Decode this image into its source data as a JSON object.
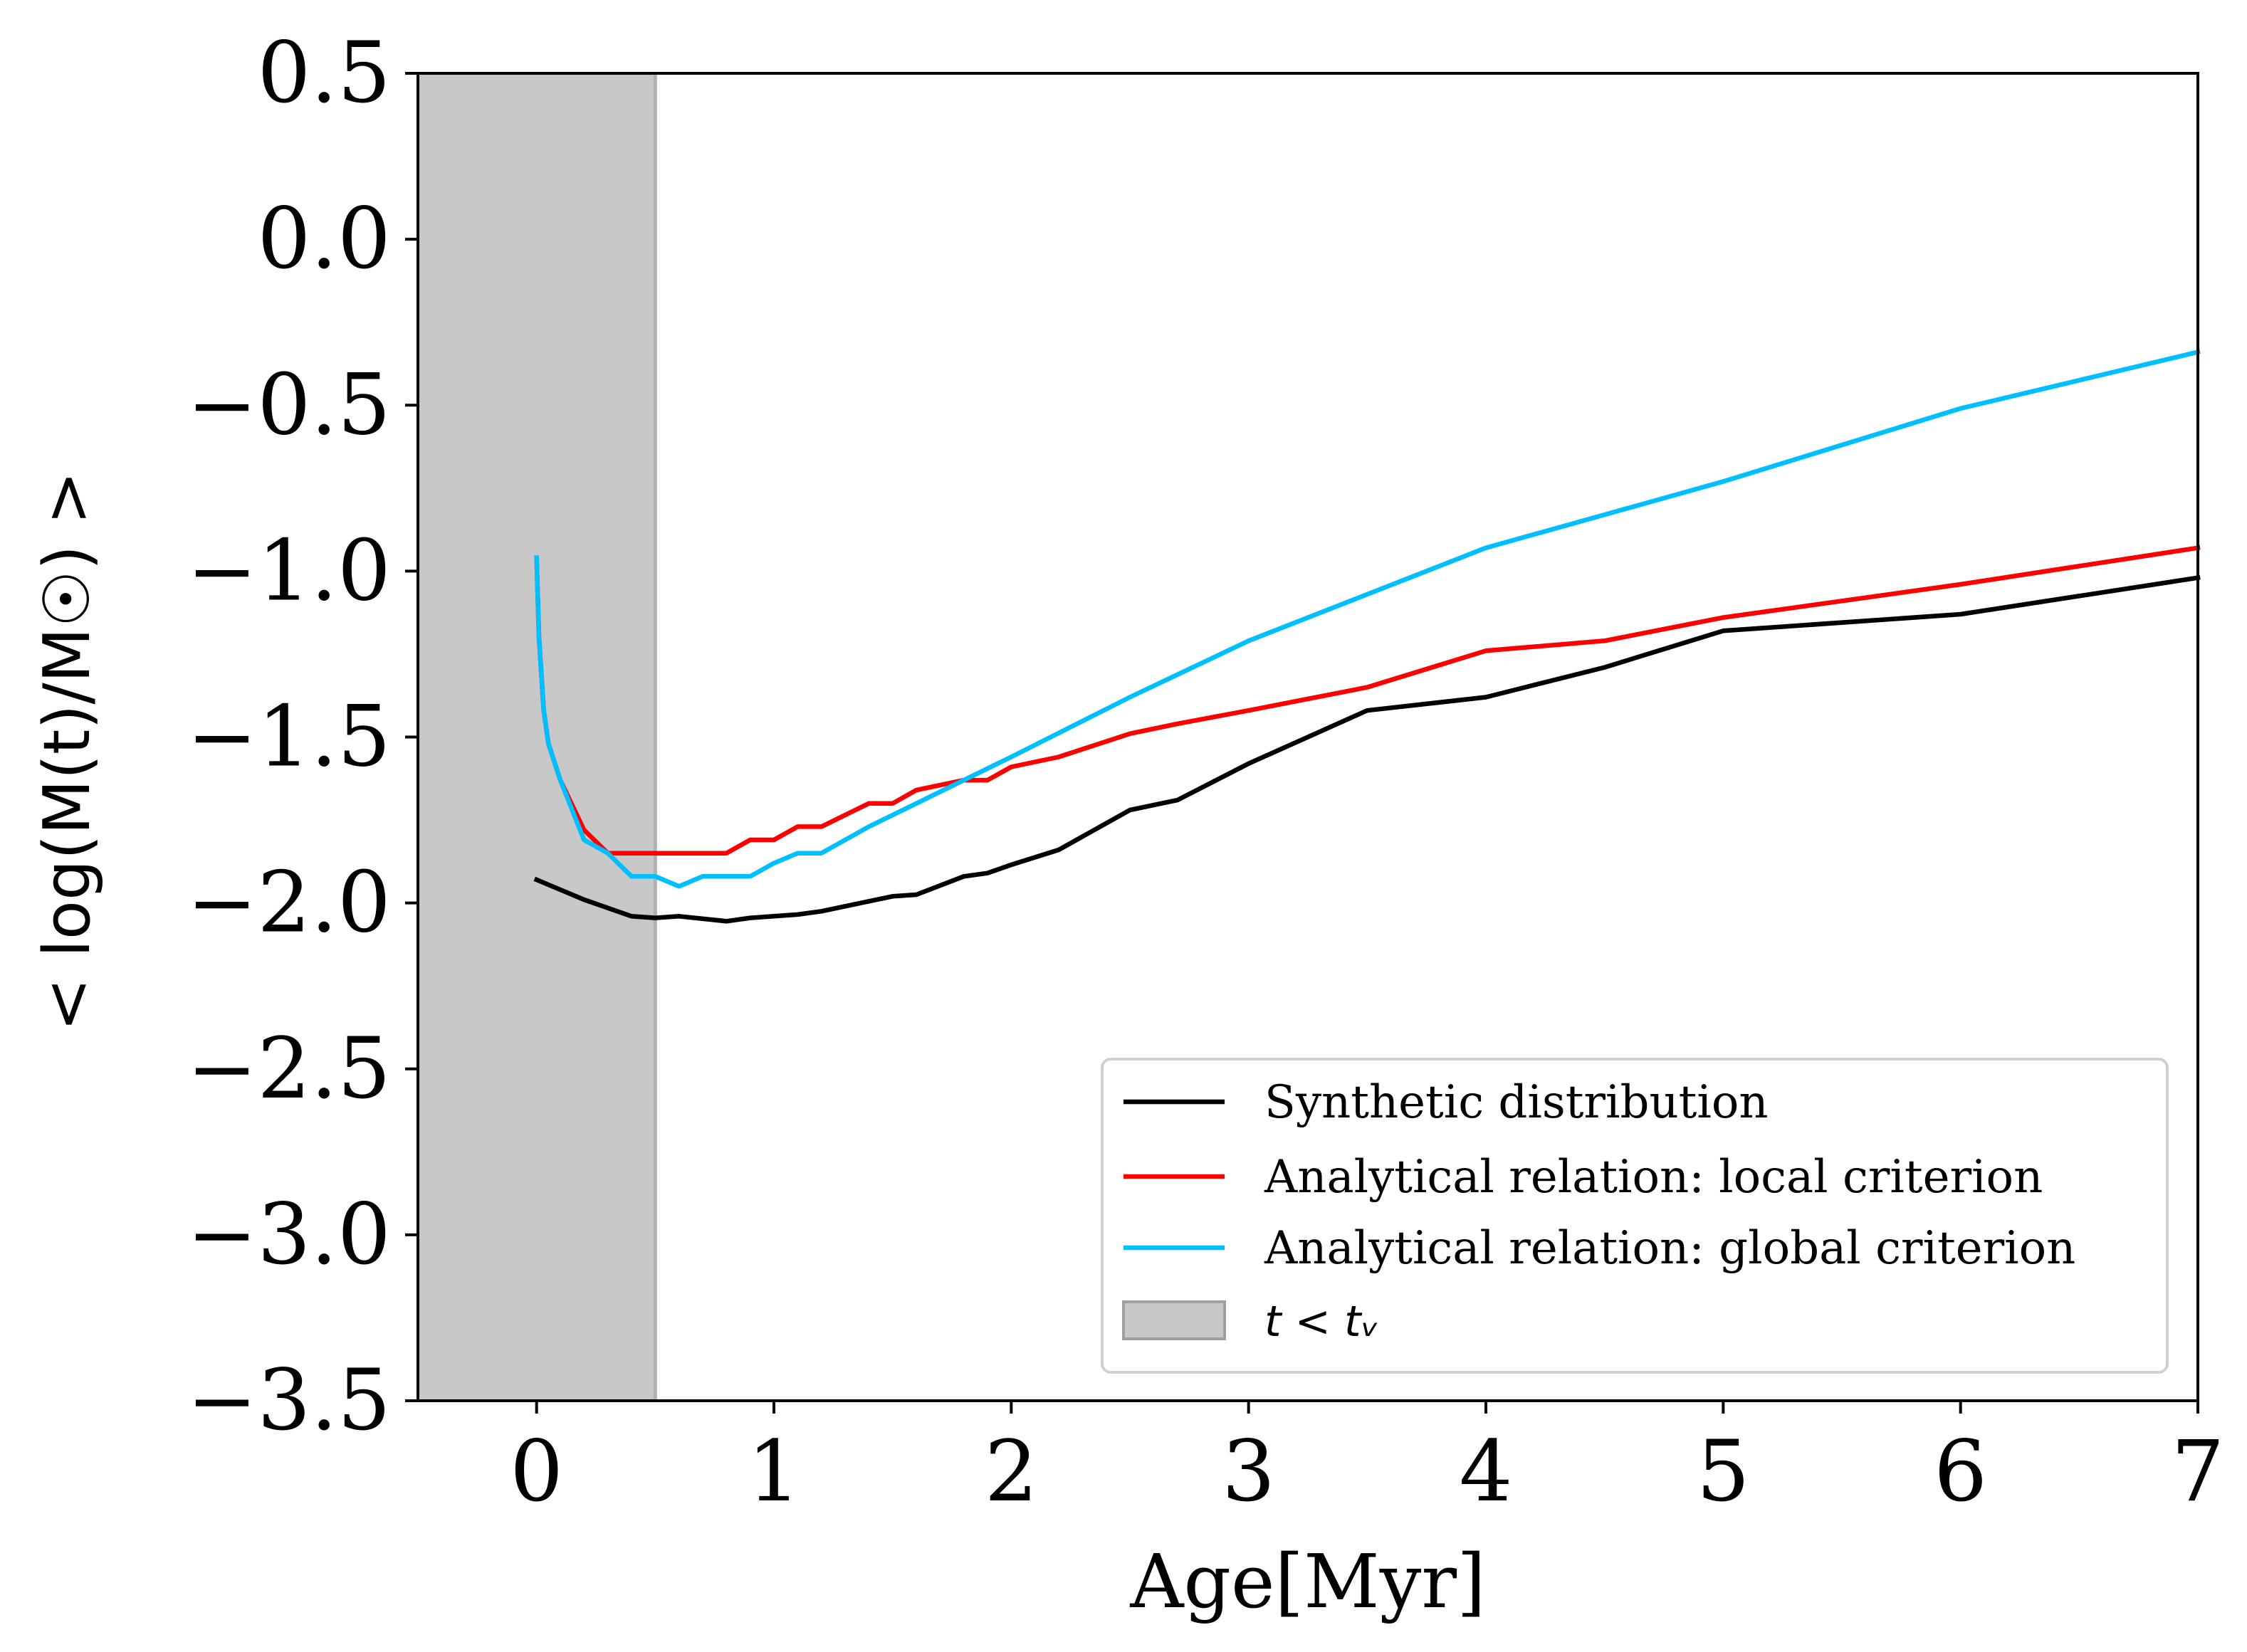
{
  "chart_data": {
    "type": "line",
    "xlabel": "Age[Myr]",
    "ylabel": "< log(M(t)/M☉) >",
    "xlim": [
      -0.5,
      7
    ],
    "ylim": [
      -3.5,
      0.5
    ],
    "xticks": [
      "0",
      "1",
      "2",
      "3",
      "4",
      "5",
      "6",
      "7"
    ],
    "yticks": [
      "0.5",
      "0.0",
      "−0.5",
      "−1.0",
      "−1.5",
      "−2.0",
      "−2.5",
      "−3.0",
      "−3.5"
    ],
    "shaded_region": {
      "x": [
        -0.5,
        0.5
      ],
      "label": "t < tᵥ",
      "color": "#c8c8c8"
    },
    "legend_position": "lower-right",
    "series": [
      {
        "name": "Synthetic distribution",
        "color": "#000000",
        "x": [
          0,
          0.2,
          0.4,
          0.5,
          0.6,
          0.8,
          0.9,
          1.0,
          1.1,
          1.2,
          1.4,
          1.5,
          1.6,
          1.8,
          1.9,
          2.0,
          2.2,
          2.5,
          2.7,
          3.0,
          3.5,
          4.0,
          4.5,
          5.0,
          6.0,
          7.0
        ],
        "y": [
          -1.93,
          -1.99,
          -2.04,
          -2.045,
          -2.04,
          -2.055,
          -2.045,
          -2.04,
          -2.035,
          -2.025,
          -1.995,
          -1.98,
          -1.975,
          -1.92,
          -1.91,
          -1.885,
          -1.84,
          -1.72,
          -1.69,
          -1.58,
          -1.42,
          -1.38,
          -1.29,
          -1.18,
          -1.13,
          -1.02
        ]
      },
      {
        "name": "Analytical relation: local criterion",
        "color": "#ff0000",
        "x": [
          0,
          0.01,
          0.03,
          0.05,
          0.1,
          0.2,
          0.3,
          0.4,
          0.5,
          0.6,
          0.7,
          0.8,
          0.9,
          1.0,
          1.1,
          1.2,
          1.4,
          1.5,
          1.6,
          1.8,
          1.9,
          2.0,
          2.2,
          2.5,
          2.7,
          3.0,
          3.5,
          4.0,
          4.5,
          5.0,
          6.0,
          7.0
        ],
        "y": [
          -0.96,
          -1.2,
          -1.42,
          -1.52,
          -1.63,
          -1.78,
          -1.85,
          -1.85,
          -1.85,
          -1.85,
          -1.85,
          -1.85,
          -1.81,
          -1.81,
          -1.77,
          -1.77,
          -1.7,
          -1.7,
          -1.66,
          -1.63,
          -1.63,
          -1.59,
          -1.56,
          -1.49,
          -1.46,
          -1.42,
          -1.35,
          -1.24,
          -1.21,
          -1.14,
          -1.04,
          -0.93
        ]
      },
      {
        "name": "Analytical relation: global criterion",
        "color": "#00bfff",
        "x": [
          0,
          0.01,
          0.03,
          0.05,
          0.1,
          0.2,
          0.3,
          0.4,
          0.5,
          0.6,
          0.7,
          0.8,
          0.9,
          1.0,
          1.1,
          1.2,
          1.4,
          1.6,
          1.8,
          2.0,
          2.5,
          3.0,
          3.5,
          4.0,
          4.5,
          5.0,
          6.0,
          7.0
        ],
        "y": [
          -0.96,
          -1.2,
          -1.42,
          -1.52,
          -1.63,
          -1.81,
          -1.85,
          -1.92,
          -1.92,
          -1.95,
          -1.92,
          -1.92,
          -1.92,
          -1.88,
          -1.85,
          -1.85,
          -1.77,
          -1.7,
          -1.63,
          -1.56,
          -1.38,
          -1.21,
          -1.07,
          -0.93,
          -0.83,
          -0.73,
          -0.51,
          -0.34
        ]
      }
    ],
    "legend_shaded_label": "t < tᵥ"
  }
}
